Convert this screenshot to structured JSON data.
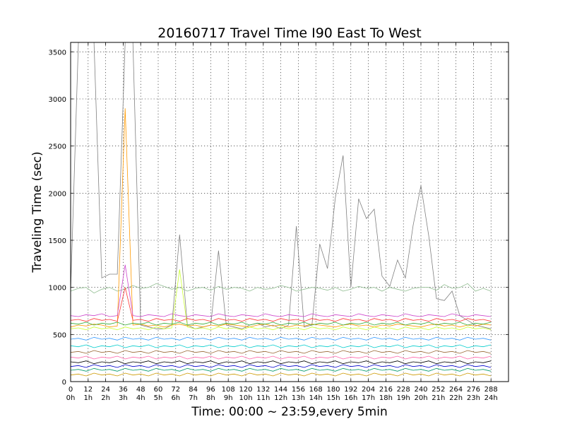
{
  "chart_data": {
    "type": "line",
    "title": "20160717 Travel Time I90 East To West",
    "xlabel": "Time: 00:00 ~ 23:59,every 5min",
    "ylabel": "Traveling Time (sec)",
    "xlim": [
      0,
      300
    ],
    "ylim": [
      0,
      3600
    ],
    "grid": true,
    "x_ticks": [
      {
        "value": 0,
        "label": "0",
        "sublabel": "0h"
      },
      {
        "value": 12,
        "label": "12",
        "sublabel": "1h"
      },
      {
        "value": 24,
        "label": "24",
        "sublabel": "2h"
      },
      {
        "value": 36,
        "label": "36",
        "sublabel": "3h"
      },
      {
        "value": 48,
        "label": "48",
        "sublabel": "4h"
      },
      {
        "value": 60,
        "label": "60",
        "sublabel": "5h"
      },
      {
        "value": 72,
        "label": "72",
        "sublabel": "6h"
      },
      {
        "value": 84,
        "label": "84",
        "sublabel": "7h"
      },
      {
        "value": 96,
        "label": "96",
        "sublabel": "8h"
      },
      {
        "value": 108,
        "label": "108",
        "sublabel": "9h"
      },
      {
        "value": 120,
        "label": "120",
        "sublabel": "10h"
      },
      {
        "value": 132,
        "label": "132",
        "sublabel": "11h"
      },
      {
        "value": 144,
        "label": "144",
        "sublabel": "12h"
      },
      {
        "value": 156,
        "label": "156",
        "sublabel": "13h"
      },
      {
        "value": 168,
        "label": "168",
        "sublabel": "14h"
      },
      {
        "value": 180,
        "label": "180",
        "sublabel": "15h"
      },
      {
        "value": 192,
        "label": "192",
        "sublabel": "16h"
      },
      {
        "value": 204,
        "label": "204",
        "sublabel": "17h"
      },
      {
        "value": 216,
        "label": "216",
        "sublabel": "18h"
      },
      {
        "value": 228,
        "label": "228",
        "sublabel": "19h"
      },
      {
        "value": 240,
        "label": "240",
        "sublabel": "20h"
      },
      {
        "value": 252,
        "label": "252",
        "sublabel": "21h"
      },
      {
        "value": 264,
        "label": "264",
        "sublabel": "22h"
      },
      {
        "value": 276,
        "label": "276",
        "sublabel": "23h"
      },
      {
        "value": 288,
        "label": "288",
        "sublabel": "24h"
      }
    ],
    "y_ticks": [
      0,
      500,
      1000,
      1500,
      2000,
      2500,
      3000,
      3500
    ],
    "series": [
      {
        "color": "#808080",
        "values": [
          950,
          3600,
          3600,
          3600,
          1100,
          1140,
          1140,
          3600,
          3600,
          600,
          580,
          560,
          560,
          600,
          1560,
          600,
          560,
          580,
          600,
          1390,
          600,
          580,
          560,
          600,
          620,
          580,
          600,
          560,
          600,
          1650,
          580,
          600,
          1460,
          1200,
          1950,
          2400,
          1000,
          1940,
          1730,
          1830,
          1120,
          1010,
          1290,
          1100,
          1660,
          2080,
          1550,
          880,
          860,
          960,
          700,
          650,
          600,
          580,
          560
        ]
      },
      {
        "color": "#8fbc8f",
        "values": [
          960,
          990,
          1000,
          940,
          980,
          1000,
          960,
          980,
          1020,
          990,
          1000,
          1040,
          1010,
          980,
          1000,
          960,
          990,
          1000,
          970,
          1010,
          980,
          1000,
          990,
          960,
          1000,
          980,
          990,
          1020,
          1000,
          960,
          980,
          1000,
          990,
          970,
          1000,
          960,
          980,
          1010,
          990,
          1000,
          960,
          1000,
          980,
          960,
          990,
          1000,
          1000,
          970,
          1030,
          990,
          1000,
          1040,
          960,
          990,
          960
        ]
      },
      {
        "color": "#ff9900",
        "values": [
          580,
          600,
          590,
          610,
          600,
          580,
          590,
          2900,
          600,
          610,
          590,
          600,
          580,
          600,
          610,
          590,
          600,
          580,
          600,
          590,
          610,
          600,
          590,
          580,
          600,
          610,
          590,
          600,
          580,
          600,
          590,
          610,
          600,
          590,
          580,
          600,
          610,
          590,
          600,
          580,
          600,
          590,
          610,
          600,
          590,
          580,
          600,
          610,
          590,
          600,
          580,
          600,
          590,
          610,
          600
        ]
      },
      {
        "color": "#cc44cc",
        "values": [
          700,
          690,
          710,
          700,
          720,
          690,
          700,
          1240,
          700,
          690,
          710,
          700,
          690,
          720,
          700,
          690,
          710,
          700,
          690,
          720,
          700,
          690,
          710,
          700,
          690,
          720,
          700,
          690,
          710,
          700,
          690,
          720,
          700,
          690,
          710,
          700,
          690,
          720,
          700,
          690,
          710,
          700,
          690,
          720,
          700,
          690,
          710,
          700,
          690,
          720,
          700,
          690,
          710,
          700,
          690
        ]
      },
      {
        "color": "#ff3333",
        "values": [
          650,
          660,
          640,
          670,
          650,
          660,
          640,
          1000,
          650,
          660,
          640,
          670,
          650,
          660,
          640,
          670,
          650,
          660,
          640,
          670,
          650,
          660,
          640,
          670,
          650,
          660,
          640,
          670,
          650,
          660,
          640,
          670,
          650,
          660,
          640,
          670,
          650,
          660,
          640,
          670,
          650,
          660,
          640,
          670,
          650,
          660,
          640,
          670,
          650,
          660,
          640,
          670,
          650,
          660,
          640
        ]
      },
      {
        "color": "#ccff33",
        "values": [
          560,
          570,
          550,
          580,
          560,
          570,
          550,
          580,
          560,
          570,
          550,
          580,
          560,
          570,
          1190,
          580,
          560,
          570,
          550,
          580,
          560,
          570,
          550,
          580,
          560,
          570,
          550,
          580,
          560,
          570,
          550,
          580,
          560,
          570,
          550,
          580,
          560,
          570,
          550,
          580,
          560,
          570,
          550,
          580,
          560,
          570,
          550,
          580,
          560,
          570,
          550,
          580,
          560,
          570,
          550
        ]
      },
      {
        "color": "#33aa33",
        "values": [
          620,
          610,
          630,
          600,
          620,
          610,
          630,
          600,
          620,
          610,
          630,
          600,
          620,
          610,
          630,
          600,
          620,
          610,
          630,
          600,
          620,
          610,
          630,
          600,
          620,
          610,
          630,
          600,
          620,
          610,
          630,
          600,
          620,
          610,
          630,
          600,
          620,
          610,
          630,
          600,
          620,
          610,
          630,
          600,
          620,
          610,
          630,
          600,
          620,
          610,
          630,
          600,
          620,
          610,
          630
        ]
      },
      {
        "color": "#3399ff",
        "values": [
          450,
          460,
          440,
          470,
          450,
          460,
          440,
          470,
          450,
          460,
          440,
          470,
          450,
          460,
          440,
          470,
          450,
          460,
          440,
          470,
          450,
          460,
          440,
          470,
          450,
          460,
          440,
          470,
          450,
          460,
          440,
          470,
          450,
          460,
          440,
          470,
          450,
          460,
          440,
          470,
          450,
          460,
          440,
          470,
          450,
          460,
          440,
          470,
          450,
          460,
          440,
          470,
          450,
          460,
          440
        ]
      },
      {
        "color": "#00cccc",
        "values": [
          380,
          370,
          390,
          360,
          380,
          370,
          390,
          360,
          380,
          370,
          390,
          360,
          380,
          370,
          390,
          360,
          380,
          370,
          390,
          360,
          380,
          370,
          390,
          360,
          380,
          370,
          390,
          360,
          380,
          370,
          390,
          360,
          380,
          370,
          390,
          360,
          380,
          370,
          390,
          360,
          380,
          370,
          390,
          360,
          380,
          370,
          390,
          360,
          380,
          370,
          390,
          360,
          380,
          370,
          390
        ]
      },
      {
        "color": "#996633",
        "values": [
          310,
          320,
          300,
          330,
          310,
          320,
          300,
          330,
          310,
          320,
          300,
          330,
          310,
          320,
          300,
          330,
          310,
          320,
          300,
          330,
          310,
          320,
          300,
          330,
          310,
          320,
          300,
          330,
          310,
          320,
          300,
          330,
          310,
          320,
          300,
          330,
          310,
          320,
          300,
          330,
          310,
          320,
          300,
          330,
          310,
          320,
          300,
          330,
          310,
          320,
          300,
          330,
          310,
          320,
          300
        ]
      },
      {
        "color": "#ff66aa",
        "values": [
          260,
          250,
          270,
          240,
          260,
          250,
          270,
          240,
          260,
          250,
          270,
          240,
          260,
          250,
          270,
          240,
          260,
          250,
          270,
          240,
          260,
          250,
          270,
          240,
          260,
          250,
          270,
          240,
          260,
          250,
          270,
          240,
          260,
          250,
          270,
          240,
          260,
          250,
          270,
          240,
          260,
          250,
          270,
          240,
          260,
          250,
          270,
          240,
          260,
          250,
          270,
          240,
          260,
          250,
          270
        ]
      },
      {
        "color": "#000000",
        "values": [
          210,
          200,
          220,
          190,
          210,
          200,
          220,
          190,
          210,
          200,
          220,
          190,
          210,
          200,
          220,
          190,
          210,
          200,
          220,
          190,
          210,
          200,
          220,
          190,
          210,
          200,
          220,
          190,
          210,
          200,
          220,
          190,
          210,
          200,
          220,
          190,
          210,
          200,
          220,
          190,
          210,
          200,
          220,
          190,
          210,
          200,
          220,
          190,
          210,
          200,
          220,
          190,
          210,
          200,
          220
        ]
      },
      {
        "color": "#0000cc",
        "values": [
          160,
          170,
          150,
          180,
          160,
          170,
          150,
          180,
          160,
          170,
          150,
          180,
          160,
          170,
          150,
          180,
          160,
          170,
          150,
          180,
          160,
          170,
          150,
          180,
          160,
          170,
          150,
          180,
          160,
          170,
          150,
          180,
          160,
          170,
          150,
          180,
          160,
          170,
          150,
          180,
          160,
          170,
          150,
          180,
          160,
          170,
          150,
          180,
          160,
          170,
          150,
          180,
          160,
          170,
          150
        ]
      },
      {
        "color": "#009966",
        "values": [
          120,
          130,
          110,
          140,
          120,
          130,
          110,
          140,
          120,
          130,
          110,
          140,
          120,
          130,
          110,
          140,
          120,
          130,
          110,
          140,
          120,
          130,
          110,
          140,
          120,
          130,
          110,
          140,
          120,
          130,
          110,
          140,
          120,
          130,
          110,
          140,
          120,
          130,
          110,
          140,
          120,
          130,
          110,
          140,
          120,
          130,
          110,
          140,
          120,
          130,
          110,
          140,
          120,
          130,
          110
        ]
      },
      {
        "color": "#cc9900",
        "values": [
          70,
          80,
          60,
          90,
          70,
          80,
          60,
          90,
          70,
          80,
          60,
          90,
          70,
          80,
          60,
          90,
          70,
          80,
          60,
          90,
          70,
          80,
          60,
          90,
          70,
          80,
          60,
          90,
          70,
          80,
          60,
          90,
          70,
          80,
          60,
          90,
          70,
          80,
          60,
          90,
          70,
          80,
          60,
          90,
          70,
          80,
          60,
          90,
          70,
          80,
          60,
          90,
          70,
          80,
          60
        ]
      }
    ]
  }
}
